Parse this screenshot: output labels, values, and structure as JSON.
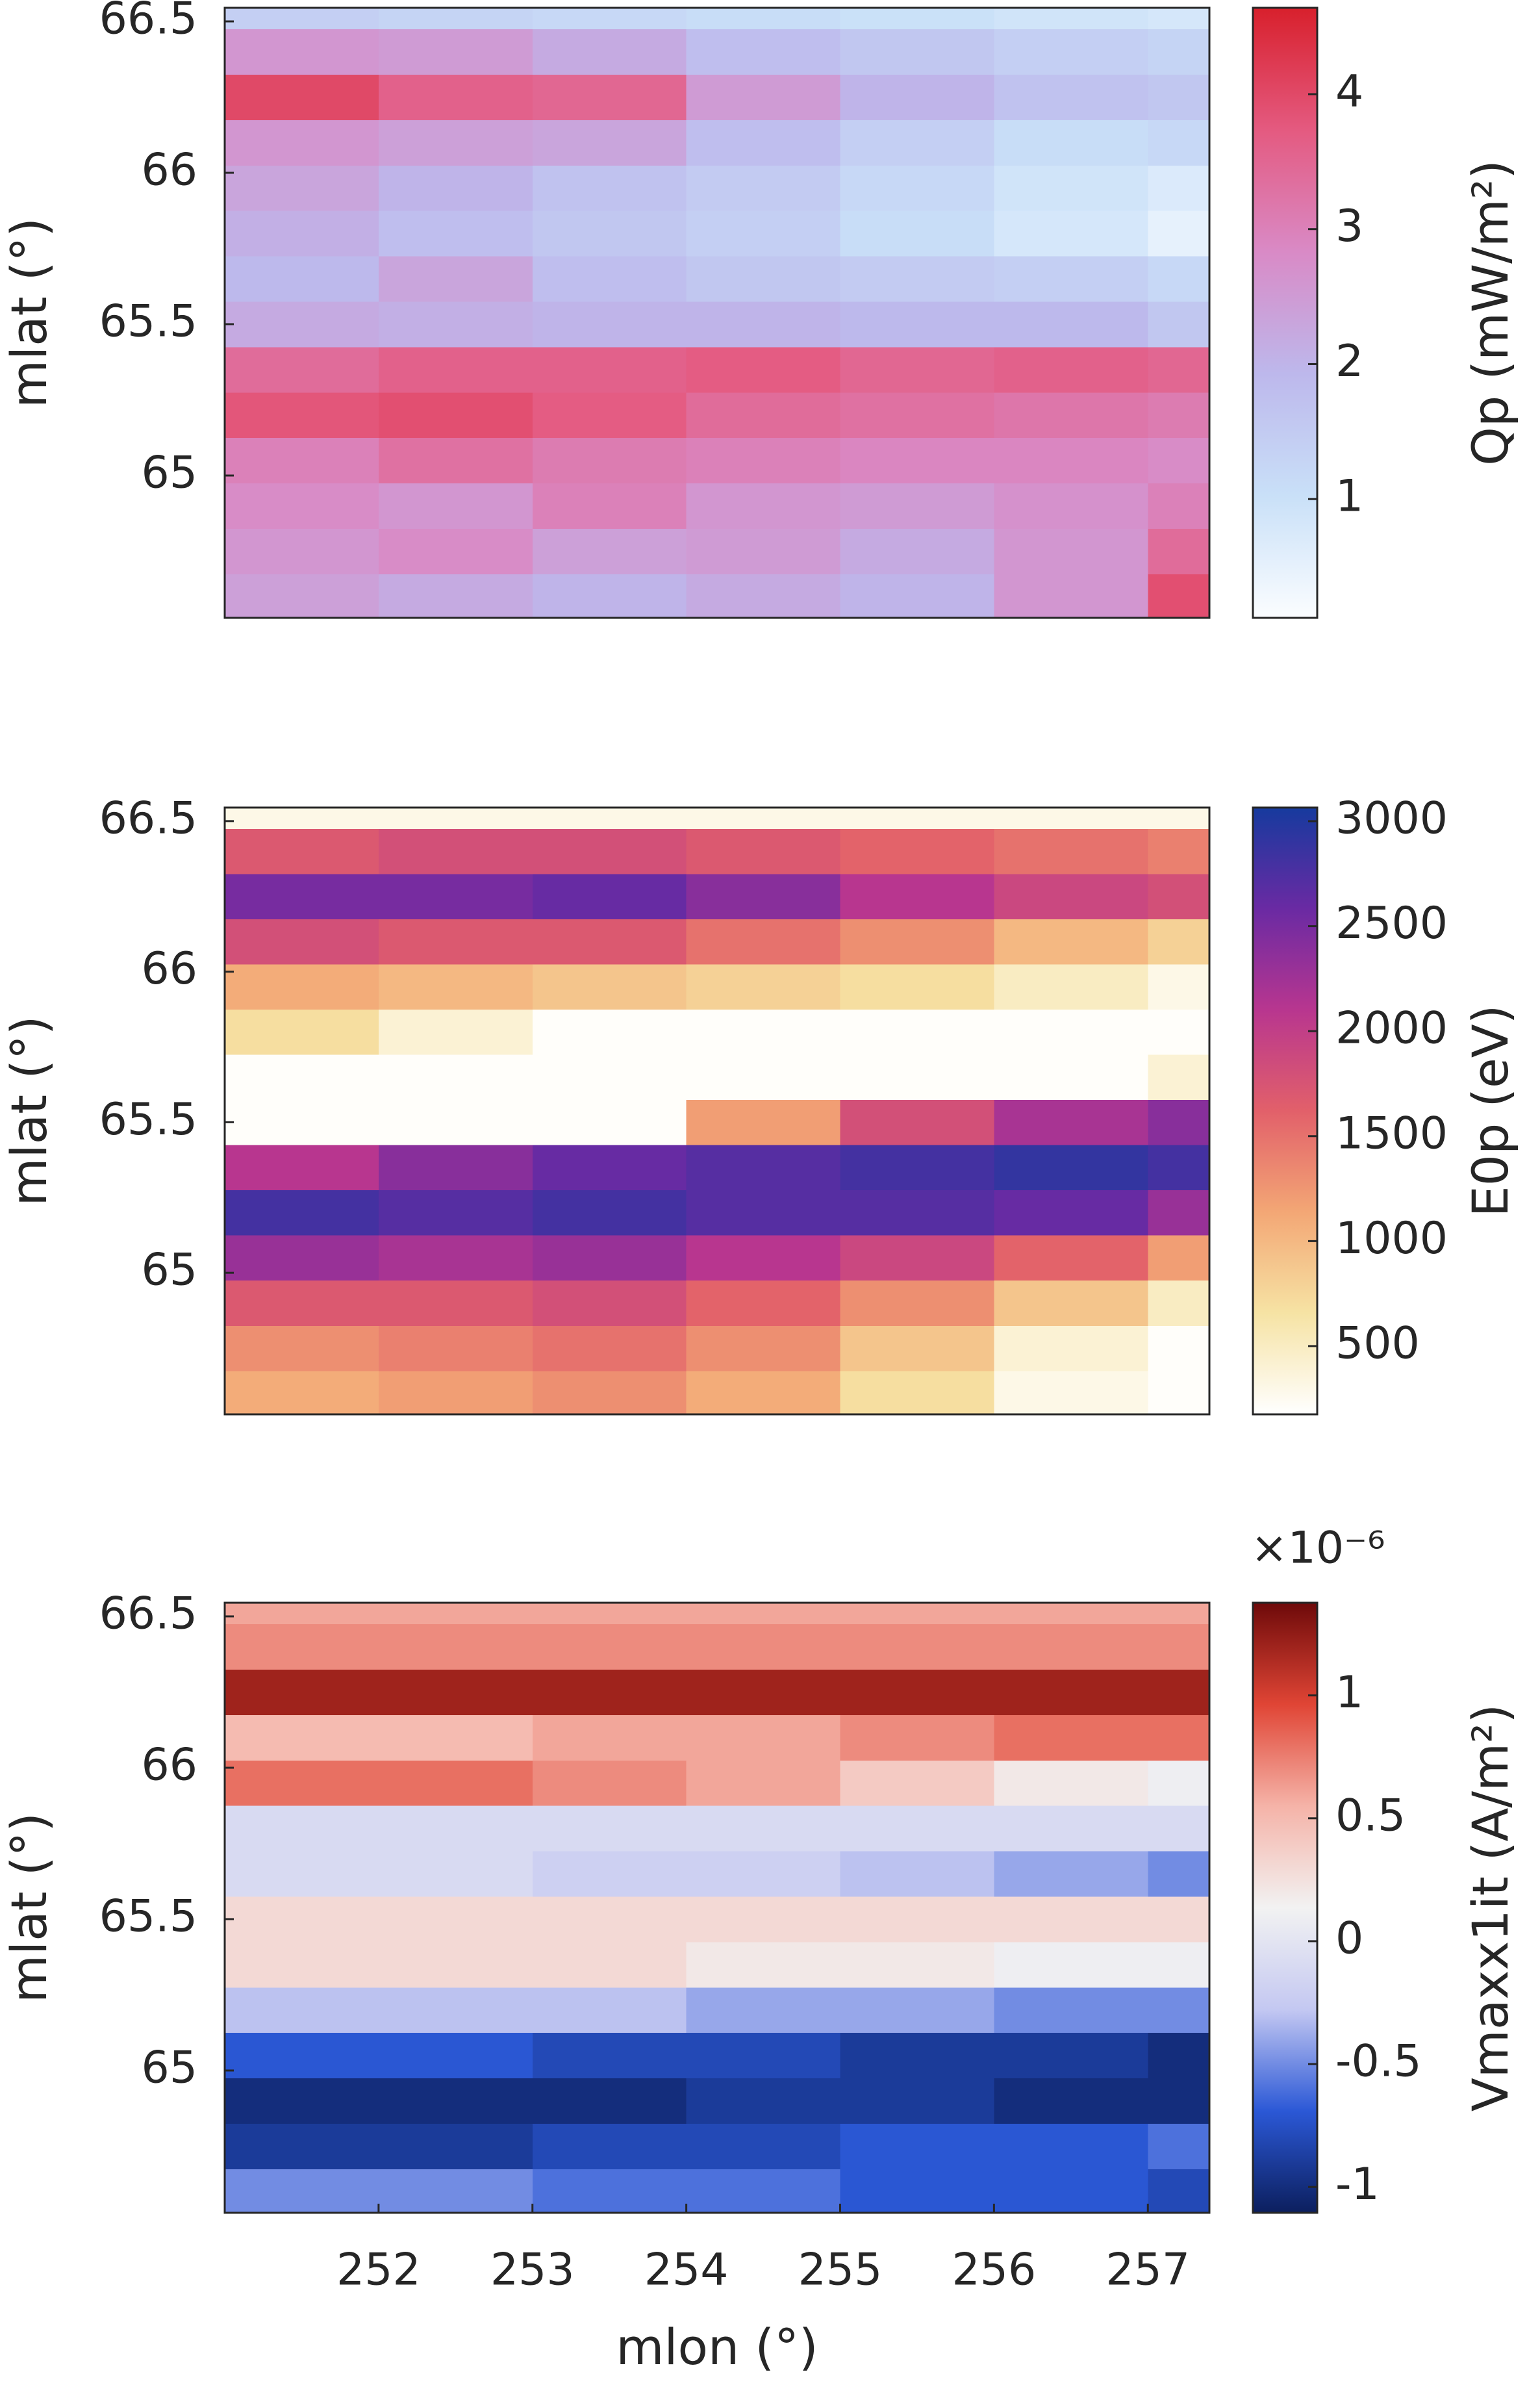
{
  "chart_data": [
    {
      "type": "heatmap",
      "y_label": "mlat (°)",
      "colorbar_label": "Qp (mW/m²)",
      "x": [
        251.5,
        252.5,
        253.5,
        254.5,
        255.5,
        256.5,
        257.5
      ],
      "y": [
        64.6,
        64.75,
        64.9,
        65.05,
        65.2,
        65.35,
        65.5,
        65.65,
        65.8,
        65.95,
        66.1,
        66.25,
        66.4,
        66.55
      ],
      "z": [
        [
          2.4,
          2.2,
          2.0,
          2.2,
          2.0,
          2.6,
          3.9
        ],
        [
          2.6,
          2.8,
          2.4,
          2.5,
          2.2,
          2.6,
          3.4
        ],
        [
          2.8,
          2.6,
          3.0,
          2.6,
          2.5,
          2.7,
          3.0
        ],
        [
          3.0,
          3.3,
          3.1,
          3.0,
          2.9,
          2.9,
          2.8
        ],
        [
          3.8,
          3.9,
          3.7,
          3.4,
          3.3,
          3.2,
          3.1
        ],
        [
          3.4,
          3.6,
          3.6,
          3.7,
          3.5,
          3.6,
          3.5
        ],
        [
          2.2,
          2.1,
          2.0,
          2.0,
          1.9,
          1.9,
          1.6
        ],
        [
          1.9,
          2.3,
          1.8,
          1.6,
          1.5,
          1.4,
          1.2
        ],
        [
          2.1,
          1.8,
          1.6,
          1.4,
          1.1,
          0.8,
          0.5
        ],
        [
          2.3,
          2.0,
          1.7,
          1.5,
          1.2,
          0.9,
          0.7
        ],
        [
          2.6,
          2.4,
          2.3,
          1.8,
          1.4,
          1.1,
          1.2
        ],
        [
          4.0,
          3.6,
          3.5,
          2.5,
          2.0,
          1.7,
          1.6
        ],
        [
          2.6,
          2.5,
          2.2,
          1.8,
          1.6,
          1.4,
          1.3
        ],
        [
          1.4,
          1.3,
          1.2,
          1.1,
          1.0,
          0.9,
          0.8
        ]
      ],
      "xlim": [
        251.0,
        257.4
      ],
      "ylim": [
        64.53,
        66.545
      ],
      "yticks": [
        65,
        65.5,
        66,
        66.5
      ],
      "clim": [
        0.12,
        4.64
      ],
      "cticks": [
        1,
        2,
        3,
        4
      ],
      "colormap": [
        "#fbfdff",
        "#c9e0f8",
        "#bdb8ec",
        "#d98ac6",
        "#e45a80",
        "#d8202c"
      ]
    },
    {
      "type": "heatmap",
      "y_label": "mlat (°)",
      "colorbar_label": "E0p (eV)",
      "x": [
        251.5,
        252.5,
        253.5,
        254.5,
        255.5,
        256.5,
        257.5
      ],
      "y": [
        64.6,
        64.75,
        64.9,
        65.05,
        65.2,
        65.35,
        65.5,
        65.65,
        65.8,
        65.95,
        66.1,
        66.25,
        66.4,
        66.55
      ],
      "z": [
        [
          1100,
          1200,
          1300,
          1100,
          700,
          300,
          200
        ],
        [
          1300,
          1400,
          1500,
          1300,
          900,
          400,
          200
        ],
        [
          1700,
          1700,
          1800,
          1600,
          1300,
          900,
          500
        ],
        [
          2300,
          2200,
          2300,
          2100,
          1900,
          1600,
          1200
        ],
        [
          2800,
          2700,
          2800,
          2700,
          2700,
          2600,
          2300
        ],
        [
          2100,
          2400,
          2600,
          2700,
          2800,
          2900,
          2800
        ],
        [
          200,
          200,
          200,
          1200,
          1800,
          2200,
          2400
        ],
        [
          200,
          200,
          200,
          200,
          200,
          200,
          400
        ],
        [
          700,
          400,
          200,
          200,
          200,
          200,
          200
        ],
        [
          1100,
          1000,
          900,
          800,
          700,
          500,
          300
        ],
        [
          1800,
          1700,
          1700,
          1500,
          1300,
          1000,
          800
        ],
        [
          2500,
          2500,
          2600,
          2400,
          2100,
          1900,
          1800
        ],
        [
          1700,
          1800,
          1800,
          1700,
          1600,
          1500,
          1400
        ],
        [
          300,
          300,
          300,
          300,
          300,
          300,
          300
        ]
      ],
      "xlim": [
        251.0,
        257.4
      ],
      "ylim": [
        64.53,
        66.545
      ],
      "yticks": [
        65,
        65.5,
        66,
        66.5
      ],
      "clim": [
        175,
        3065
      ],
      "cticks": [
        500,
        1000,
        1500,
        2000,
        2500,
        3000
      ],
      "colormap": [
        "#ffffff",
        "#f6e3a4",
        "#f3a775",
        "#e2606a",
        "#b8368f",
        "#6a2aa3",
        "#163a9e"
      ]
    },
    {
      "type": "heatmap",
      "y_label": "mlat (°)",
      "x_label": "mlon (°)",
      "colorbar_label": "Vmaxx1it (A/m²)",
      "colorbar_multiplier": "×10⁻⁶",
      "x": [
        251.5,
        252.5,
        253.5,
        254.5,
        255.5,
        256.5,
        257.5
      ],
      "y": [
        64.6,
        64.75,
        64.9,
        65.05,
        65.2,
        65.35,
        65.5,
        65.65,
        65.8,
        65.95,
        66.1,
        66.25,
        66.4,
        66.55
      ],
      "z": [
        [
          -0.5,
          -0.5,
          -0.6,
          -0.6,
          -0.7,
          -0.7,
          -0.8
        ],
        [
          -0.9,
          -0.9,
          -0.8,
          -0.8,
          -0.7,
          -0.7,
          -0.6
        ],
        [
          -1.0,
          -1.0,
          -1.0,
          -0.9,
          -0.9,
          -1.0,
          -1.0
        ],
        [
          -0.7,
          -0.7,
          -0.8,
          -0.8,
          -0.9,
          -0.9,
          -1.0
        ],
        [
          -0.3,
          -0.3,
          -0.3,
          -0.4,
          -0.4,
          -0.5,
          -0.5
        ],
        [
          0.3,
          0.3,
          0.3,
          0.2,
          0.2,
          0.1,
          0.1
        ],
        [
          0.3,
          0.3,
          0.3,
          0.3,
          0.3,
          0.3,
          0.3
        ],
        [
          -0.1,
          -0.1,
          -0.2,
          -0.2,
          -0.3,
          -0.4,
          -0.5
        ],
        [
          -0.1,
          -0.1,
          -0.1,
          -0.1,
          -0.1,
          -0.1,
          -0.1
        ],
        [
          0.8,
          0.8,
          0.7,
          0.6,
          0.4,
          0.2,
          0.1
        ],
        [
          0.5,
          0.5,
          0.6,
          0.6,
          0.7,
          0.8,
          0.8
        ],
        [
          1.2,
          1.2,
          1.2,
          1.2,
          1.2,
          1.2,
          1.2
        ],
        [
          0.7,
          0.7,
          0.7,
          0.7,
          0.7,
          0.7,
          0.7
        ],
        [
          0.6,
          0.6,
          0.6,
          0.6,
          0.6,
          0.6,
          0.6
        ]
      ],
      "xlim": [
        251.0,
        257.4
      ],
      "ylim": [
        64.53,
        66.545
      ],
      "xticks": [
        252,
        253,
        254,
        255,
        256,
        257
      ],
      "yticks": [
        65,
        65.5,
        66,
        66.5
      ],
      "clim": [
        -1.105,
        1.377
      ],
      "cticks": [
        -1,
        -0.5,
        0,
        0.5,
        1
      ],
      "colormap": [
        "#0c1f5e",
        "#2b58d6",
        "#c4c8f2",
        "#f2f2f2",
        "#f5b3a8",
        "#e04535",
        "#6e0a0a"
      ]
    }
  ]
}
